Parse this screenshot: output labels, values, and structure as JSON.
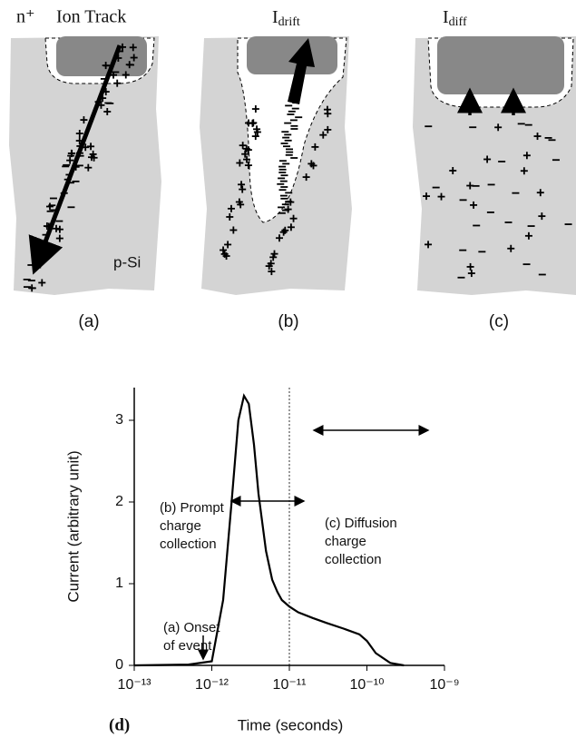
{
  "panels": {
    "a": {
      "title": {
        "main": "n⁺",
        "second": "Ion Track"
      },
      "region_label": "p-Si",
      "caption": "(a)"
    },
    "b": {
      "title": {
        "main": "I",
        "sub": "drift"
      },
      "caption": "(b)"
    },
    "c": {
      "title": {
        "main": "I",
        "sub": "diff"
      },
      "caption": "(c)"
    }
  },
  "chart_data": {
    "type": "line",
    "panel_label": "(d)",
    "xlabel": "Time (seconds)",
    "ylabel": "Current (arbitrary unit)",
    "x": [
      1e-13,
      5e-13,
      1e-12,
      1.4e-12,
      1.8e-12,
      2.2e-12,
      2.6e-12,
      3e-12,
      3.5e-12,
      4e-12,
      5e-12,
      6e-12,
      7e-12,
      8e-12,
      1e-11,
      1.3e-11,
      2e-11,
      3e-11,
      5e-11,
      8e-11,
      1e-10,
      1.3e-10,
      2e-10,
      3e-10
    ],
    "values": [
      0,
      0.01,
      0.05,
      0.8,
      2.0,
      3.0,
      3.3,
      3.2,
      2.7,
      2.1,
      1.4,
      1.05,
      0.9,
      0.8,
      0.72,
      0.65,
      0.58,
      0.52,
      0.45,
      0.38,
      0.3,
      0.15,
      0.03,
      0
    ],
    "color": "#000000",
    "xscale": "log",
    "xlim": [
      1e-13,
      1e-09
    ],
    "ylim": [
      0,
      3.4
    ],
    "xticks": [
      {
        "value": 1e-13,
        "label": "10⁻¹³"
      },
      {
        "value": 1e-12,
        "label": "10⁻¹²"
      },
      {
        "value": 1e-11,
        "label": "10⁻¹¹"
      },
      {
        "value": 1e-10,
        "label": "10⁻¹⁰"
      },
      {
        "value": 1e-09,
        "label": "10⁻⁹"
      }
    ],
    "yticks": [
      0,
      1,
      2,
      3
    ],
    "vline": 1e-11,
    "annotations": [
      {
        "lines": [
          "(b) Prompt",
          "charge",
          "collection"
        ]
      },
      {
        "lines": [
          "(c) Diffusion",
          "charge",
          "collection"
        ]
      },
      {
        "lines": [
          "(a) Onset",
          "of event"
        ]
      }
    ]
  }
}
